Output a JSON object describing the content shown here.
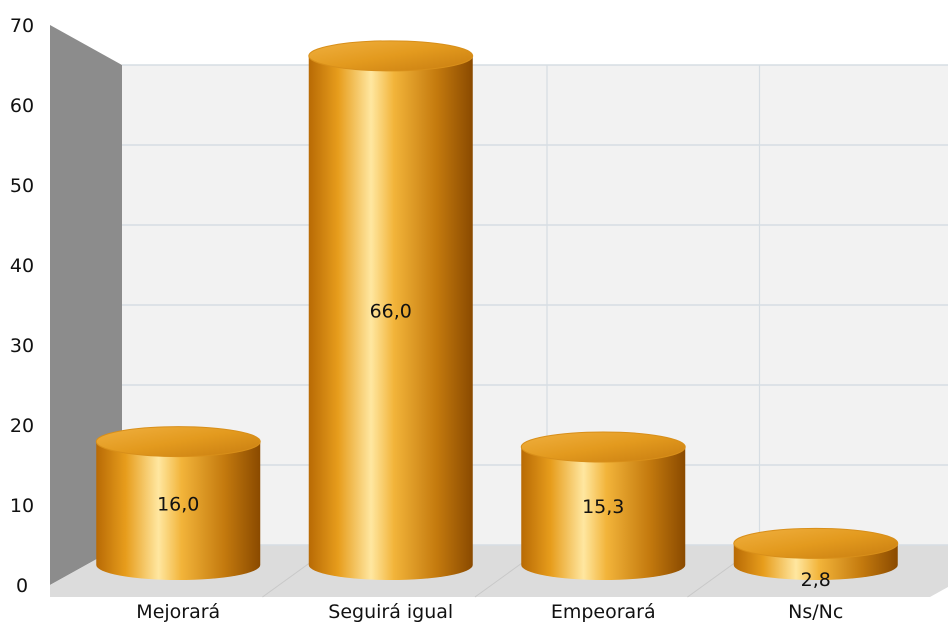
{
  "chart_data": {
    "type": "bar",
    "style": "3d-cylinder",
    "categories": [
      "Mejorará",
      "Seguirá igual",
      "Empeorará",
      "Ns/Nc"
    ],
    "values": [
      16.0,
      66.0,
      15.3,
      2.8
    ],
    "value_labels": [
      "16,0",
      "66,0",
      "15,3",
      "2,8"
    ],
    "ylim": [
      0,
      70
    ],
    "yticks": [
      0,
      10,
      20,
      30,
      40,
      50,
      60,
      70
    ],
    "grid": true,
    "legend": "none",
    "colors": {
      "bar_light": "#ffe7a0",
      "bar_mid": "#e79d1c",
      "bar_dark": "#8a4a00",
      "back_wall": "#f2f2f2",
      "side_wall": "#8c8c8c",
      "floor": "#dcdcdc",
      "grid": "#d6dde3"
    }
  }
}
